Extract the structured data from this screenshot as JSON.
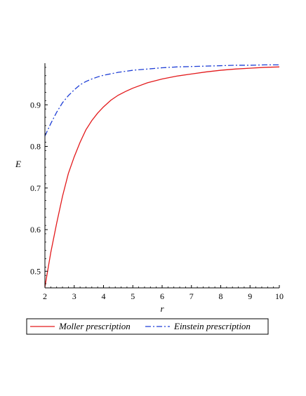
{
  "chart_data": {
    "type": "line",
    "title": "",
    "xlabel": "r",
    "ylabel": "E",
    "xlim": [
      2,
      10
    ],
    "ylim": [
      0.46,
      1.0
    ],
    "xticks": [
      2,
      3,
      4,
      5,
      6,
      7,
      8,
      9,
      10
    ],
    "yticks": [
      0.5,
      0.6,
      0.7,
      0.8,
      0.9
    ],
    "xtick_labels": [
      "2",
      "3",
      "4",
      "5",
      "6",
      "7",
      "8",
      "9",
      "10"
    ],
    "ytick_labels": [
      "0.5",
      "0.6",
      "0.7",
      "0.8",
      "0.9"
    ],
    "grid": false,
    "legend_position": "bottom",
    "series": [
      {
        "name": "Moller prescription",
        "color": "#e31a1c",
        "style": "solid",
        "x": [
          2.0,
          2.2,
          2.4,
          2.6,
          2.8,
          3.0,
          3.2,
          3.4,
          3.6,
          3.8,
          4.0,
          4.25,
          4.5,
          4.75,
          5.0,
          5.5,
          6.0,
          6.5,
          7.0,
          7.5,
          8.0,
          8.5,
          9.0,
          9.5,
          10.0
        ],
        "y": [
          0.462,
          0.545,
          0.615,
          0.68,
          0.735,
          0.775,
          0.81,
          0.84,
          0.862,
          0.88,
          0.895,
          0.911,
          0.923,
          0.932,
          0.94,
          0.953,
          0.962,
          0.969,
          0.974,
          0.979,
          0.983,
          0.986,
          0.988,
          0.99,
          0.991
        ]
      },
      {
        "name": "Einstein prescription",
        "color": "#1f3fd6",
        "style": "dashdot",
        "x": [
          2.0,
          2.2,
          2.4,
          2.6,
          2.8,
          3.0,
          3.2,
          3.4,
          3.6,
          3.8,
          4.0,
          4.5,
          5.0,
          5.5,
          6.0,
          6.5,
          7.0,
          7.5,
          8.0,
          8.5,
          9.0,
          9.5,
          10.0
        ],
        "y": [
          0.825,
          0.855,
          0.882,
          0.905,
          0.922,
          0.936,
          0.948,
          0.956,
          0.962,
          0.967,
          0.971,
          0.978,
          0.983,
          0.986,
          0.989,
          0.991,
          0.992,
          0.993,
          0.994,
          0.995,
          0.995,
          0.996,
          0.996
        ]
      }
    ]
  }
}
